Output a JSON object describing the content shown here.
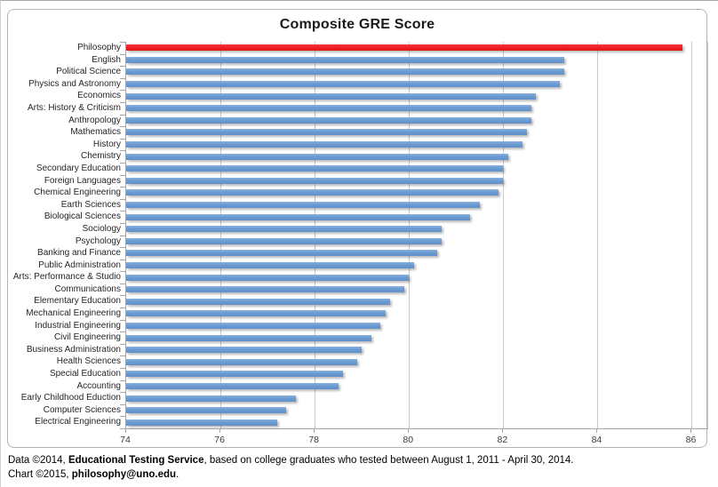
{
  "chart_data": {
    "type": "bar",
    "orientation": "horizontal",
    "title": "Composite GRE Score",
    "categories": [
      "Philosophy",
      "English",
      "Political Science",
      "Physics and Astronomy",
      "Economics",
      "Arts: History & Criticism",
      "Anthropology",
      "Mathematics",
      "History",
      "Chemistry",
      "Secondary Education",
      "Foreign Languages",
      "Chemical Engineering",
      "Earth Sciences",
      "Biological Sciences",
      "Sociology",
      "Psychology",
      "Banking and Finance",
      "Public Administration",
      "Arts: Performance & Studio",
      "Communications",
      "Elementary Education",
      "Mechanical Engineering",
      "Industrial Engineering",
      "Civil Engineering",
      "Business Administration",
      "Health Sciences",
      "Special Education",
      "Accounting",
      "Early Childhood Eduction",
      "Computer Sciences",
      "Electrical Engineering"
    ],
    "values": [
      85.8,
      83.3,
      83.3,
      83.2,
      82.7,
      82.6,
      82.6,
      82.5,
      82.4,
      82.1,
      82.0,
      82.0,
      81.9,
      81.5,
      81.3,
      80.7,
      80.7,
      80.6,
      80.1,
      80.0,
      79.9,
      79.6,
      79.5,
      79.4,
      79.2,
      79.0,
      78.9,
      78.6,
      78.5,
      77.6,
      77.4,
      77.2
    ],
    "highlight_index": 0,
    "colors": {
      "default_bar": "#6b9bd2",
      "highlight_bar": "#ee1c21",
      "gridline": "#c9c9c9"
    },
    "xlim": [
      74,
      86
    ],
    "x_ticks": [
      "74",
      "76",
      "78",
      "80",
      "82",
      "84",
      "86"
    ],
    "grid": true,
    "legend": "none"
  },
  "footer": {
    "line1_prefix": "Data ©2014, ",
    "line1_bold": "Educational Testing Service",
    "line1_suffix": ", based on college graduates who tested between August 1, 2011 - April 30, 2014.",
    "line2_prefix": "Chart ©2015, ",
    "line2_bold": "philosophy@uno.edu",
    "line2_suffix": "."
  }
}
